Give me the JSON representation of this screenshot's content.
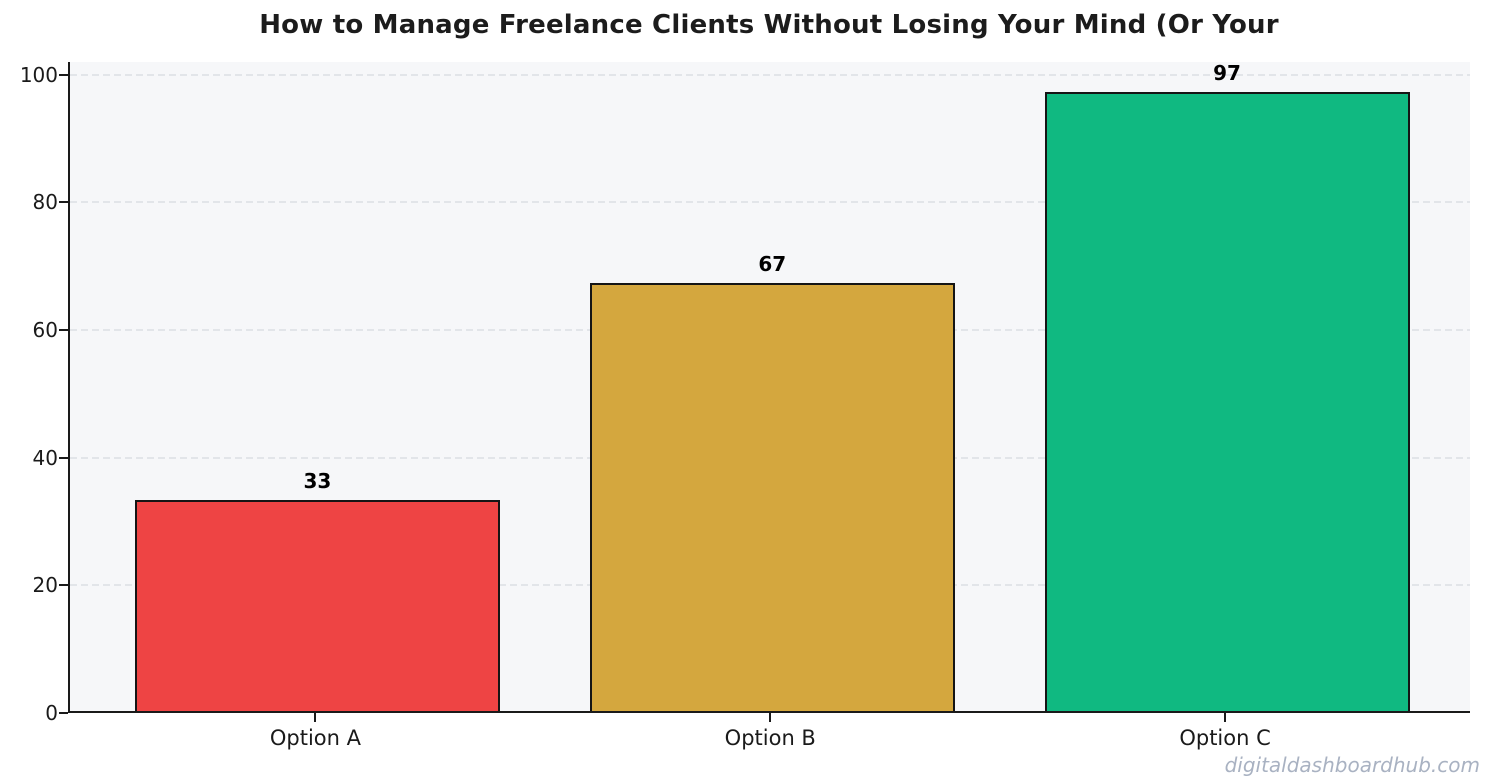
{
  "chart_data": {
    "type": "bar",
    "title": "How to Manage Freelance Clients Without Losing Your Mind (Or Your",
    "categories": [
      "Option A",
      "Option B",
      "Option C"
    ],
    "values": [
      33,
      67,
      97
    ],
    "value_labels": [
      "33",
      "67",
      "97"
    ],
    "bar_colors": [
      "#ee4444",
      "#d4a73e",
      "#10b981"
    ],
    "bar_edge_color": "#151515",
    "xlabel": "",
    "ylabel": "",
    "ylim": [
      0,
      102
    ],
    "yticks": [
      0,
      20,
      40,
      60,
      80,
      100
    ],
    "grid": "horizontal dashed gridlines on",
    "legend": "none",
    "plot_background": "#f6f7f9",
    "axis_color": "#1a1a1a"
  },
  "watermark": {
    "text": "digitaldashboardhub.com",
    "color": "#a9b2c2"
  }
}
